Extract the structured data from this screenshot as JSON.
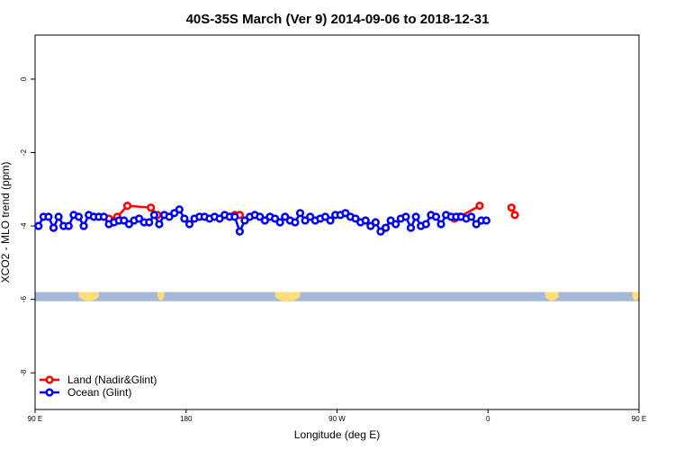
{
  "chart_data": {
    "type": "line",
    "title": "40S-35S March (Ver 9)   2014-09-06 to 2018-12-31",
    "xlabel": "Longitude (deg E)",
    "ylabel": "XCO2 - MLO trend (ppm)",
    "xlim": [
      90,
      450
    ],
    "ylim": [
      -9,
      1.2
    ],
    "x_ticks": [
      {
        "value": 90,
        "label": "90 E"
      },
      {
        "value": 180,
        "label": "180"
      },
      {
        "value": 270,
        "label": "90 W"
      },
      {
        "value": 360,
        "label": "0"
      },
      {
        "value": 450,
        "label": "90 E"
      },
      {
        "value": 540,
        "label": "180"
      }
    ],
    "y_ticks": [
      {
        "value": 0,
        "label": "0"
      },
      {
        "value": -2,
        "label": "-2"
      },
      {
        "value": -4,
        "label": "-4"
      },
      {
        "value": -6,
        "label": "-6"
      },
      {
        "value": -8,
        "label": "-8"
      }
    ],
    "grid": false,
    "legend_position": "bottom-left",
    "series": [
      {
        "name": "Land (Nadir&Glint)",
        "color": "#ff0000",
        "segments": [
          [
            [
              134,
              -3.8
            ],
            [
              139,
              -3.75
            ],
            [
              145,
              -3.45
            ],
            [
              159,
              -3.5
            ],
            [
              163,
              -3.7
            ]
          ],
          [
            [
              209,
              -3.7
            ],
            [
              212,
              -3.7
            ]
          ],
          [
            [
              340,
              -3.8
            ],
            [
              343,
              -3.75
            ],
            [
              355,
              -3.45
            ]
          ],
          [
            [
              374,
              -3.5
            ],
            [
              376,
              -3.7
            ]
          ]
        ]
      },
      {
        "name": "Ocean (Glint)",
        "color": "#0000ff",
        "segments": [
          [
            [
              92,
              -4.0
            ],
            [
              95,
              -3.75
            ],
            [
              98,
              -3.75
            ],
            [
              101,
              -4.05
            ],
            [
              104,
              -3.75
            ],
            [
              107,
              -4.0
            ],
            [
              110,
              -4.0
            ],
            [
              113,
              -3.7
            ],
            [
              116,
              -3.75
            ],
            [
              119,
              -4.0
            ],
            [
              122,
              -3.7
            ],
            [
              125,
              -3.75
            ],
            [
              128,
              -3.75
            ],
            [
              131,
              -3.75
            ],
            [
              134,
              -3.95
            ],
            [
              137,
              -3.9
            ],
            [
              140,
              -3.85
            ],
            [
              143,
              -3.85
            ],
            [
              146,
              -3.95
            ],
            [
              149,
              -3.85
            ],
            [
              152,
              -3.8
            ],
            [
              155,
              -3.9
            ],
            [
              158,
              -3.9
            ],
            [
              161,
              -3.7
            ],
            [
              164,
              -3.95
            ],
            [
              167,
              -3.7
            ],
            [
              170,
              -3.75
            ],
            [
              173,
              -3.65
            ],
            [
              176,
              -3.55
            ],
            [
              179,
              -3.8
            ],
            [
              182,
              -3.95
            ],
            [
              185,
              -3.8
            ],
            [
              188,
              -3.75
            ],
            [
              191,
              -3.75
            ],
            [
              194,
              -3.8
            ],
            [
              197,
              -3.75
            ],
            [
              200,
              -3.8
            ],
            [
              203,
              -3.7
            ],
            [
              206,
              -3.75
            ],
            [
              209,
              -3.75
            ],
            [
              212,
              -4.15
            ],
            [
              215,
              -3.85
            ],
            [
              218,
              -3.75
            ],
            [
              221,
              -3.7
            ],
            [
              224,
              -3.75
            ],
            [
              227,
              -3.85
            ],
            [
              230,
              -3.75
            ],
            [
              233,
              -3.8
            ],
            [
              236,
              -3.9
            ],
            [
              239,
              -3.75
            ],
            [
              242,
              -3.85
            ],
            [
              245,
              -3.9
            ],
            [
              248,
              -3.65
            ],
            [
              251,
              -3.85
            ],
            [
              254,
              -3.75
            ],
            [
              257,
              -3.85
            ],
            [
              260,
              -3.8
            ],
            [
              263,
              -3.75
            ],
            [
              266,
              -3.85
            ],
            [
              269,
              -3.7
            ],
            [
              272,
              -3.7
            ],
            [
              275,
              -3.65
            ],
            [
              278,
              -3.75
            ],
            [
              281,
              -3.8
            ],
            [
              284,
              -3.9
            ],
            [
              287,
              -3.85
            ],
            [
              290,
              -4.0
            ],
            [
              293,
              -3.9
            ],
            [
              296,
              -4.15
            ],
            [
              299,
              -4.05
            ],
            [
              302,
              -3.85
            ],
            [
              305,
              -3.95
            ],
            [
              308,
              -3.8
            ],
            [
              311,
              -3.75
            ],
            [
              314,
              -4.05
            ],
            [
              317,
              -3.75
            ],
            [
              320,
              -4.0
            ],
            [
              323,
              -3.95
            ],
            [
              326,
              -3.7
            ],
            [
              329,
              -3.75
            ],
            [
              332,
              -3.95
            ],
            [
              335,
              -3.7
            ],
            [
              338,
              -3.75
            ],
            [
              341,
              -3.75
            ],
            [
              344,
              -3.75
            ],
            [
              347,
              -3.8
            ],
            [
              350,
              -3.75
            ],
            [
              353,
              -3.95
            ],
            [
              356,
              -3.85
            ],
            [
              359,
              -3.85
            ]
          ]
        ]
      }
    ],
    "colors": {
      "land_strip": "#ffdd77",
      "ocean_strip": "#a6b8d8"
    }
  }
}
